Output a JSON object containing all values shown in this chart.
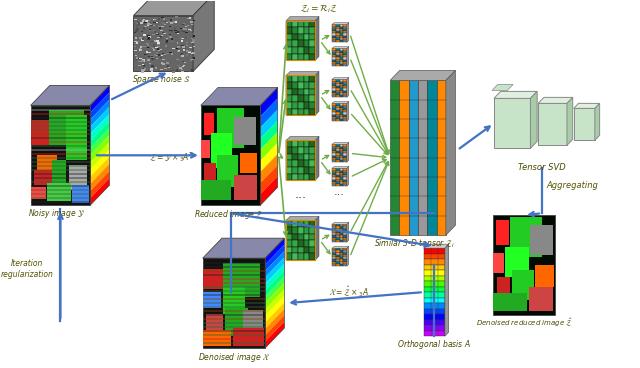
{
  "bg_color": "#ffffff",
  "blue": "#4472c4",
  "green": "#70ad47",
  "labels": {
    "noisy": "Noisy image $\\mathcal{Y}$",
    "sparse": "Sparse noise $\\mathcal{S}$",
    "reduced": "Reduced image $\\mathcal{Z}$",
    "similar": "Similar 3-D tensor $\\mathcal{Z}_i$",
    "tensor_svd": "Tensor SVD",
    "aggregating": "Aggregating",
    "orthogonal": "Orthogonal basis $A$",
    "denoised_reduced": "Denoised reduced image $\\hat{\\mathcal{Z}}$",
    "denoised": "Denoised image $\\mathcal{X}$",
    "iteration": "Iteration\nregularization",
    "eq1": "$\\mathcal{Z}=\\mathcal{Y}\\times_3 A^T$",
    "eq2": "$\\mathcal{Z}_i=\\mathcal{R}_i\\mathcal{Z}$",
    "eq3": "$\\mathcal{X}=\\hat{\\mathcal{Z}}\\times_3 A$"
  }
}
